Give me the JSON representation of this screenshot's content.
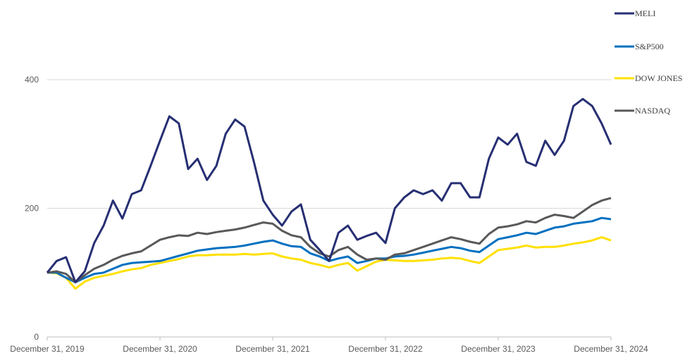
{
  "chart_data": {
    "type": "line",
    "title": "",
    "xlabel": "",
    "ylabel": "",
    "ylim": [
      0,
      500
    ],
    "yticks": [
      0,
      200,
      400
    ],
    "xtick_labels": [
      "December 31, 2019",
      "December 31, 2020",
      "December 31, 2021",
      "December 31, 2022",
      "December 31, 2023",
      "December 31, 2024"
    ],
    "grid": "horizontal",
    "legend_placement": "right",
    "x": [
      "2019-12",
      "2020-01",
      "2020-02",
      "2020-03",
      "2020-04",
      "2020-05",
      "2020-06",
      "2020-07",
      "2020-08",
      "2020-09",
      "2020-10",
      "2020-11",
      "2020-12",
      "2021-01",
      "2021-02",
      "2021-03",
      "2021-04",
      "2021-05",
      "2021-06",
      "2021-07",
      "2021-08",
      "2021-09",
      "2021-10",
      "2021-11",
      "2021-12",
      "2022-01",
      "2022-02",
      "2022-03",
      "2022-04",
      "2022-05",
      "2022-06",
      "2022-07",
      "2022-08",
      "2022-09",
      "2022-10",
      "2022-11",
      "2022-12",
      "2023-01",
      "2023-02",
      "2023-03",
      "2023-04",
      "2023-05",
      "2023-06",
      "2023-07",
      "2023-08",
      "2023-09",
      "2023-10",
      "2023-11",
      "2023-12",
      "2024-01",
      "2024-02",
      "2024-03",
      "2024-04",
      "2024-05",
      "2024-06",
      "2024-07",
      "2024-08",
      "2024-09",
      "2024-10",
      "2024-11",
      "2024-12"
    ],
    "series": [
      {
        "name": "MELI",
        "color": "#262f73",
        "values": [
          100,
          118,
          124,
          85,
          102,
          146,
          173,
          212,
          184,
          222,
          228,
          266,
          305,
          343,
          332,
          261,
          277,
          244,
          266,
          316,
          338,
          327,
          272,
          212,
          190,
          173,
          195,
          206,
          151,
          135,
          118,
          162,
          173,
          151,
          157,
          162,
          146,
          200,
          217,
          228,
          222,
          228,
          212,
          239,
          239,
          217,
          217,
          277,
          310,
          299,
          316,
          272,
          266,
          305,
          283,
          305,
          359,
          370,
          359,
          332,
          299
        ]
      },
      {
        "name": "S&P500",
        "color": "#0070c0",
        "values": [
          100,
          100,
          92,
          85,
          92,
          98,
          100,
          106,
          112,
          115,
          116,
          117,
          118,
          122,
          126,
          130,
          134,
          136,
          138,
          139,
          140,
          142,
          145,
          148,
          150,
          145,
          141,
          140,
          130,
          125,
          118,
          122,
          125,
          115,
          118,
          122,
          122,
          125,
          126,
          128,
          131,
          134,
          137,
          140,
          138,
          134,
          132,
          142,
          152,
          155,
          158,
          162,
          160,
          165,
          170,
          172,
          176,
          178,
          180,
          185,
          183
        ]
      },
      {
        "name": "DOW JONES",
        "color": "#ffe000",
        "values": [
          100,
          99,
          92,
          75,
          86,
          92,
          95,
          98,
          102,
          105,
          107,
          112,
          115,
          118,
          121,
          125,
          127,
          127,
          128,
          128,
          128,
          129,
          128,
          129,
          130,
          125,
          122,
          120,
          115,
          112,
          108,
          112,
          115,
          103,
          110,
          117,
          120,
          119,
          118,
          118,
          119,
          120,
          122,
          123,
          122,
          118,
          115,
          125,
          135,
          137,
          139,
          142,
          139,
          140,
          140,
          142,
          145,
          147,
          150,
          155,
          150
        ]
      },
      {
        "name": "NASDAQ",
        "color": "#595959",
        "values": [
          100,
          102,
          98,
          85,
          96,
          106,
          112,
          120,
          126,
          130,
          133,
          142,
          151,
          155,
          158,
          157,
          162,
          160,
          163,
          165,
          167,
          170,
          174,
          178,
          176,
          165,
          158,
          155,
          140,
          130,
          125,
          135,
          140,
          128,
          120,
          122,
          120,
          128,
          130,
          135,
          140,
          145,
          150,
          155,
          152,
          148,
          145,
          160,
          170,
          172,
          175,
          180,
          178,
          185,
          190,
          188,
          185,
          195,
          205,
          212,
          216
        ]
      }
    ]
  }
}
